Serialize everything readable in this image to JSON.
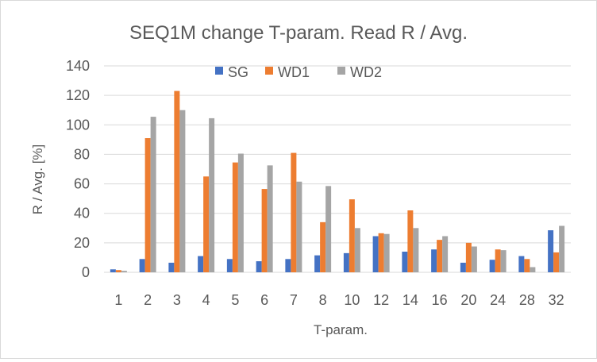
{
  "chart_data": {
    "type": "bar",
    "title": "SEQ1M change T-param. Read R / Avg.",
    "xlabel": "T-param.",
    "ylabel": "R / Avg. [%]",
    "ylim": [
      0,
      140
    ],
    "yticks": [
      0,
      20,
      40,
      60,
      80,
      100,
      120,
      140
    ],
    "grid": true,
    "legend_position": "top",
    "categories": [
      "1",
      "2",
      "3",
      "4",
      "5",
      "6",
      "7",
      "8",
      "10",
      "12",
      "14",
      "16",
      "20",
      "24",
      "28",
      "32"
    ],
    "series": [
      {
        "name": "SG",
        "color": "#4472C4",
        "values": [
          2,
          9,
          6.5,
          11,
          9,
          7.5,
          9,
          11.5,
          13,
          24.5,
          14,
          15.5,
          6.5,
          8.5,
          11,
          28.5
        ]
      },
      {
        "name": "WD1",
        "color": "#ED7D31",
        "values": [
          1.5,
          91,
          123,
          65,
          74.5,
          56.5,
          81,
          34,
          49.5,
          26.5,
          42,
          22,
          20,
          15.5,
          9,
          13.5
        ]
      },
      {
        "name": "WD2",
        "color": "#A5A5A5",
        "values": [
          1,
          105.5,
          110,
          104.5,
          80.5,
          72.5,
          61.5,
          58.5,
          30,
          26,
          30,
          24.5,
          17.5,
          15,
          3.5,
          31.5
        ]
      }
    ]
  }
}
